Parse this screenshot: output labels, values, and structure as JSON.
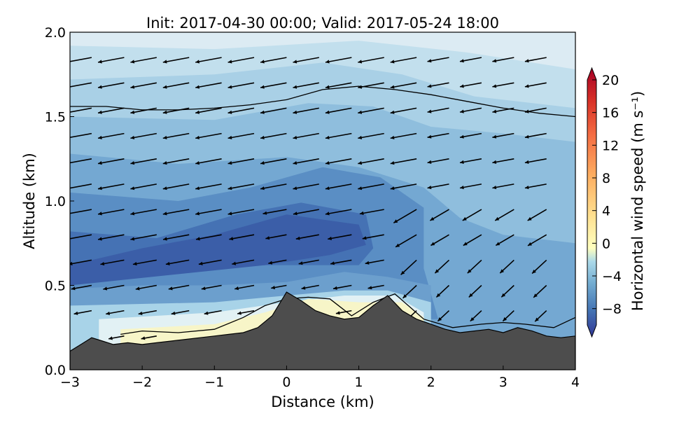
{
  "chart_data": {
    "type": "contour",
    "title": "Init: 2017-04-30 00:00; Valid: 2017-05-24 18:00",
    "xlabel": "Distance (km)",
    "ylabel": "Altitude (km)",
    "xlim": [
      -3,
      4
    ],
    "ylim": [
      0,
      2
    ],
    "xticks": [
      -3,
      -2,
      -1,
      0,
      1,
      2,
      3,
      4
    ],
    "xtick_labels": [
      "−3",
      "−2",
      "−1",
      "0",
      "1",
      "2",
      "3",
      "4"
    ],
    "yticks": [
      0,
      0.5,
      1,
      1.5,
      2
    ],
    "ytick_labels": [
      "0.0",
      "0.5",
      "1.0",
      "1.5",
      "2.0"
    ],
    "colorbar": {
      "label": "Horizontal wind speed (m s⁻¹)",
      "range": [
        -10,
        20
      ],
      "ticks": [
        -8,
        -4,
        0,
        4,
        8,
        12,
        16,
        20
      ],
      "tick_labels": [
        "−8",
        "−4",
        "0",
        "4",
        "8",
        "12",
        "16",
        "20"
      ],
      "colormap": "RdYlBu_r"
    },
    "terrain": {
      "color": "#4d4d4d",
      "x": [
        -3.0,
        -2.85,
        -2.7,
        -2.55,
        -2.4,
        -2.2,
        -2.0,
        -1.8,
        -1.6,
        -1.4,
        -1.2,
        -1.0,
        -0.8,
        -0.6,
        -0.4,
        -0.2,
        0.0,
        0.2,
        0.4,
        0.6,
        0.8,
        1.0,
        1.2,
        1.4,
        1.6,
        1.8,
        2.0,
        2.2,
        2.4,
        2.6,
        2.8,
        3.0,
        3.2,
        3.4,
        3.6,
        3.8,
        4.0
      ],
      "y": [
        0.11,
        0.15,
        0.19,
        0.17,
        0.15,
        0.16,
        0.15,
        0.16,
        0.17,
        0.18,
        0.19,
        0.2,
        0.21,
        0.22,
        0.25,
        0.32,
        0.46,
        0.41,
        0.35,
        0.32,
        0.3,
        0.31,
        0.38,
        0.44,
        0.35,
        0.3,
        0.27,
        0.24,
        0.22,
        0.23,
        0.24,
        0.22,
        0.25,
        0.23,
        0.2,
        0.19,
        0.2
      ]
    },
    "contour_lines": [
      {
        "name": "upper",
        "x": [
          -3.0,
          -2.5,
          -2.0,
          -1.5,
          -1.0,
          -0.5,
          0.0,
          0.5,
          1.0,
          1.5,
          2.0,
          2.5,
          3.0,
          3.5,
          4.0
        ],
        "y": [
          1.56,
          1.56,
          1.54,
          1.54,
          1.55,
          1.57,
          1.6,
          1.66,
          1.68,
          1.66,
          1.63,
          1.59,
          1.55,
          1.52,
          1.5
        ]
      },
      {
        "name": "lower",
        "x": [
          -2.3,
          -2.0,
          -1.5,
          -1.0,
          -0.6,
          -0.3,
          0.0,
          0.3,
          0.6,
          0.9,
          1.2,
          1.5,
          1.9,
          2.3,
          2.7,
          3.0,
          3.3,
          3.7,
          4.0
        ],
        "y": [
          0.21,
          0.23,
          0.22,
          0.24,
          0.31,
          0.38,
          0.42,
          0.43,
          0.42,
          0.32,
          0.4,
          0.45,
          0.3,
          0.25,
          0.27,
          0.28,
          0.27,
          0.25,
          0.31
        ]
      }
    ],
    "wind_field": {
      "description_note": "",
      "x": [
        -2.7,
        -2.25,
        -1.8,
        -1.35,
        -0.9,
        -0.45,
        0.0,
        0.45,
        0.9,
        1.35,
        1.8,
        2.25,
        2.7,
        3.15,
        3.6
      ],
      "y": [
        0.2,
        0.35,
        0.5,
        0.65,
        0.8,
        0.95,
        1.1,
        1.25,
        1.4,
        1.55,
        1.7,
        1.85
      ]
    }
  }
}
